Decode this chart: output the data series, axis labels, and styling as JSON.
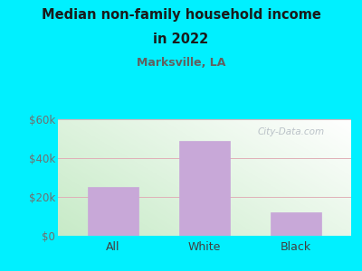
{
  "title_line1": "Median non-family household income",
  "title_line2": "in 2022",
  "subtitle": "Marksville, LA",
  "categories": [
    "All",
    "White",
    "Black"
  ],
  "values": [
    25000,
    49000,
    12000
  ],
  "bar_color": "#c8a8d8",
  "bar_edge_color": "#c8a8d8",
  "background_color": "#00f0ff",
  "title_color": "#1a1a1a",
  "subtitle_color": "#606060",
  "tick_color": "#707070",
  "xtick_color": "#404040",
  "grid_color": "#e0b0b8",
  "ylim": [
    0,
    60000
  ],
  "yticks": [
    0,
    20000,
    40000,
    60000
  ],
  "ytick_labels": [
    "$0",
    "$20k",
    "$40k",
    "$60k"
  ],
  "watermark": "City-Data.com",
  "figsize": [
    4.0,
    3.0
  ],
  "dpi": 100,
  "plot_grad_left": "#c8e8b0",
  "plot_grad_right": "#e8f0e8"
}
